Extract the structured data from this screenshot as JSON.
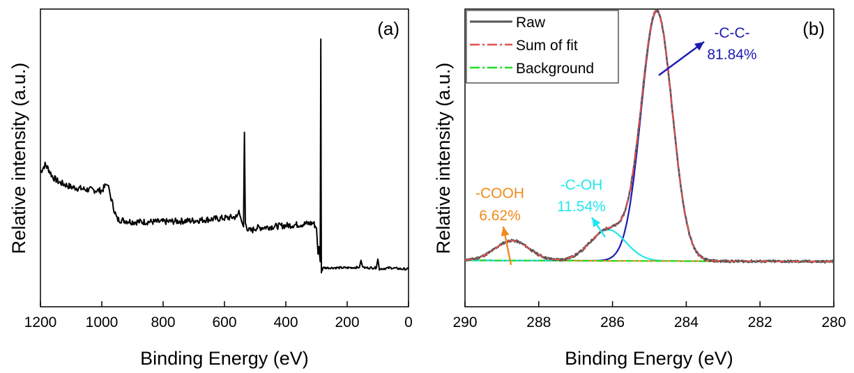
{
  "chart_data": [
    {
      "type": "line",
      "panel_label": "(a)",
      "xlabel": "Binding Energy (eV)",
      "ylabel": "Relative intensity (a.u.)",
      "xlim": [
        1200,
        0
      ],
      "ylim": [
        0,
        100
      ],
      "x_reversed": true,
      "xticks": [
        "1200",
        "1000",
        "800",
        "600",
        "400",
        "200",
        "0"
      ],
      "grid": false,
      "series": [
        {
          "color": "#000000",
          "x": [
            1200,
            1185,
            1175,
            1160,
            1140,
            1100,
            1050,
            1000,
            985,
            978,
            972,
            960,
            950,
            900,
            800,
            700,
            600,
            560,
            553,
            545,
            538,
            535,
            532,
            528,
            520,
            510,
            500,
            450,
            400,
            350,
            310,
            300,
            295,
            292,
            288,
            286,
            285,
            284,
            282,
            281,
            279,
            270,
            250,
            200,
            160,
            155,
            150,
            145,
            120,
            105,
            100,
            95,
            60,
            20,
            0
          ],
          "y": [
            44.5,
            47.5,
            46.0,
            42.5,
            40.5,
            38.5,
            37.5,
            37.0,
            39.5,
            39.0,
            35.0,
            29.5,
            25.5,
            24.5,
            24.5,
            25.0,
            26.0,
            26.5,
            28.5,
            25.0,
            22.5,
            60.5,
            24.0,
            22.5,
            21.0,
            21.0,
            22.0,
            22.5,
            23.0,
            23.5,
            24.0,
            22.0,
            11.5,
            14.5,
            8.5,
            98.0,
            40.0,
            4.0,
            6.0,
            5.0,
            6.0,
            6.0,
            6.0,
            6.0,
            6.2,
            9.0,
            6.5,
            6.0,
            6.0,
            6.0,
            9.5,
            5.5,
            6.0,
            5.5,
            5.5
          ]
        }
      ]
    },
    {
      "type": "line",
      "panel_label": "(b)",
      "xlabel": "Binding Energy (eV)",
      "ylabel": "Relative intensity (a.u.)",
      "xlim": [
        290,
        280
      ],
      "ylim": [
        0,
        100
      ],
      "x_reversed": true,
      "xticks": [
        "290",
        "288",
        "286",
        "284",
        "282",
        "280"
      ],
      "grid": false,
      "legend": {
        "position": "top-left",
        "entries": [
          "Raw",
          "Sum of fit",
          "Background"
        ]
      },
      "background": {
        "color": "#22dd22",
        "x": [
          290,
          280
        ],
        "y": [
          9.0,
          8.5
        ]
      },
      "components": [
        {
          "label": "-C-C-",
          "percent": "81.84%",
          "center": 284.8,
          "height": 100.5,
          "sigma": 0.42,
          "color": "#1a1ab4"
        },
        {
          "label": "-C-OH",
          "percent": "11.54%",
          "center": 286.12,
          "height": 12.5,
          "sigma": 0.48,
          "color": "#22e5ee"
        },
        {
          "label": "-COOH",
          "percent": "6.62%",
          "center": 288.72,
          "height": 8.0,
          "sigma": 0.46,
          "color": "#f08a1c"
        }
      ],
      "raw_color": "#555555",
      "sum_color": "#e05050",
      "annotations": [
        {
          "text_line1": "-C-C-",
          "text_line2": "81.84%",
          "color": "#1a1ab4"
        },
        {
          "text_line1": "-C-OH",
          "text_line2": "11.54%",
          "color": "#22e5ee"
        },
        {
          "text_line1": "-COOH",
          "text_line2": "6.62%",
          "color": "#f08a1c"
        }
      ]
    }
  ]
}
